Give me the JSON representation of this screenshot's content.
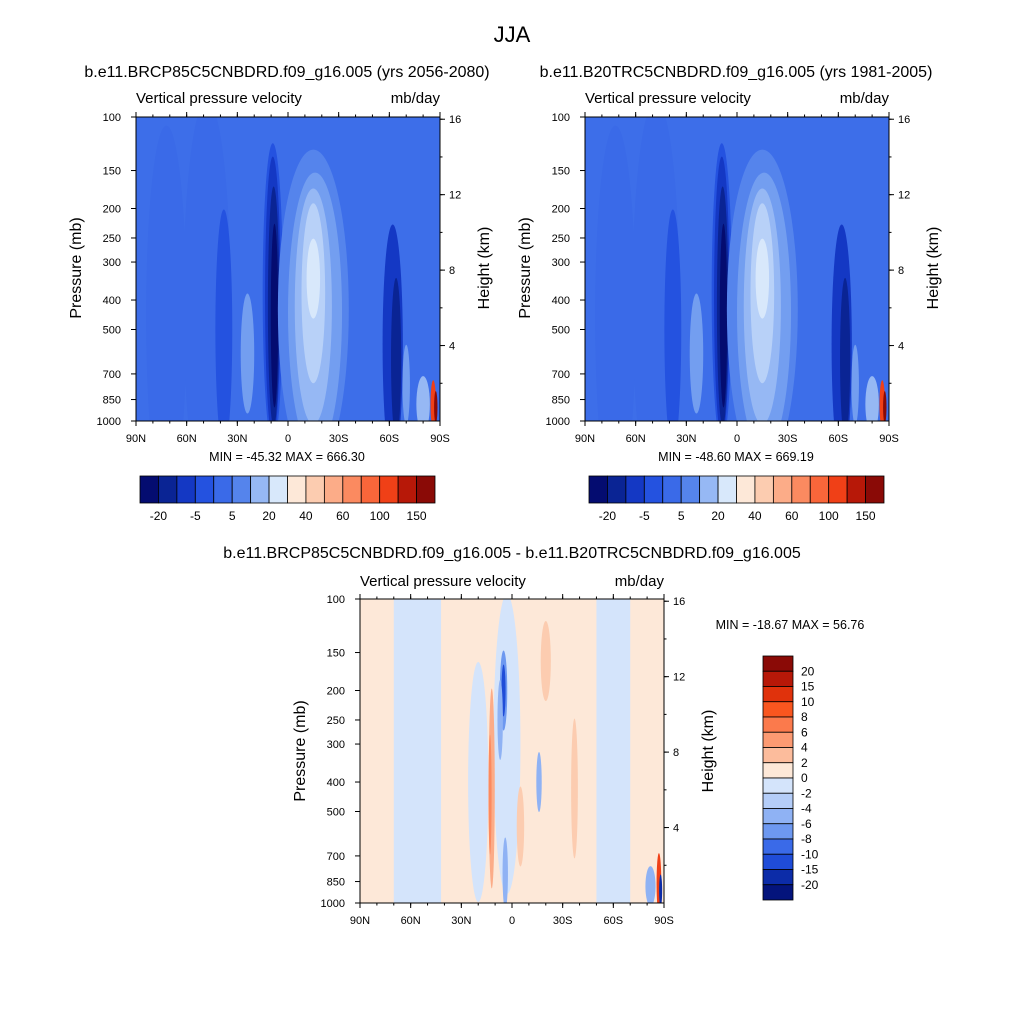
{
  "figure": {
    "title": "JJA"
  },
  "colors": {
    "pos": [
      "#fde8d8",
      "#fcccb0",
      "#fcac88",
      "#fb8a60",
      "#f9663a",
      "#f04017",
      "#d72a0a",
      "#b71808",
      "#8a0a06"
    ],
    "neg": [
      "#d8e8fb",
      "#b8d1f8",
      "#96b8f4",
      "#739ef0",
      "#5584ec",
      "#3a6ae8",
      "#2452e0",
      "#1438c4",
      "#0a2494",
      "#040c70"
    ],
    "diff_pos": [
      "#fde8d8",
      "#fcccb0",
      "#fcac88",
      "#fb8a60",
      "#f9663a",
      "#f04017",
      "#d72a0a",
      "#a8100a"
    ],
    "diff_neg": [
      "#d4e4fb",
      "#b4cdf8",
      "#8fb2f4",
      "#6d98f0",
      "#4e7eec",
      "#3064e6",
      "#1f4cd8",
      "#0c2ca8",
      "#04147c"
    ],
    "ref_bg": "#3d6ee9",
    "diff_bg": "#fde8d8"
  },
  "chart_data": [
    {
      "type": "heatmap",
      "title": "b.e11.BRCP85C5CNBDRD.f09_g16.005 (yrs 2056-2080)",
      "left_string": "Vertical pressure velocity",
      "right_string": "mb/day",
      "xlabel": "",
      "ylabel": "Pressure (mb)",
      "ylabel_right": "Height (km)",
      "x_ticks": [
        "90N",
        "60N",
        "30N",
        "0",
        "30S",
        "60S",
        "90S"
      ],
      "x_values": [
        90,
        60,
        30,
        0,
        -30,
        -60,
        -90
      ],
      "y_ticks": [
        "100",
        "150",
        "200",
        "250",
        "300",
        "400",
        "500",
        "700",
        "850",
        "1000"
      ],
      "y_values": [
        100,
        150,
        200,
        250,
        300,
        400,
        500,
        700,
        850,
        1000
      ],
      "height_ticks": [
        "16",
        "12",
        "8",
        "4"
      ],
      "height_values": [
        16,
        12,
        8,
        4
      ],
      "ylim": [
        1000,
        100
      ],
      "stats": "MIN = -45.32  MAX = 666.30",
      "colorbar_labels": [
        "-20",
        "-5",
        "5",
        "20",
        "40",
        "60",
        "100",
        "150"
      ],
      "colorbar_orientation": "horizontal"
    },
    {
      "type": "heatmap",
      "title": "b.e11.B20TRC5CNBDRD.f09_g16.005 (yrs 1981-2005)",
      "left_string": "Vertical pressure velocity",
      "right_string": "mb/day",
      "xlabel": "",
      "ylabel": "Pressure (mb)",
      "ylabel_right": "Height (km)",
      "x_ticks": [
        "90N",
        "60N",
        "30N",
        "0",
        "30S",
        "60S",
        "90S"
      ],
      "x_values": [
        90,
        60,
        30,
        0,
        -30,
        -60,
        -90
      ],
      "y_ticks": [
        "100",
        "150",
        "200",
        "250",
        "300",
        "400",
        "500",
        "700",
        "850",
        "1000"
      ],
      "y_values": [
        100,
        150,
        200,
        250,
        300,
        400,
        500,
        700,
        850,
        1000
      ],
      "height_ticks": [
        "16",
        "12",
        "8",
        "4"
      ],
      "height_values": [
        16,
        12,
        8,
        4
      ],
      "ylim": [
        1000,
        100
      ],
      "stats": "MIN = -48.60  MAX = 669.19",
      "colorbar_labels": [
        "-20",
        "-5",
        "5",
        "20",
        "40",
        "60",
        "100",
        "150"
      ],
      "colorbar_orientation": "horizontal"
    },
    {
      "type": "heatmap",
      "title": "b.e11.BRCP85C5CNBDRD.f09_g16.005 - b.e11.B20TRC5CNBDRD.f09_g16.005",
      "left_string": "Vertical pressure velocity",
      "right_string": "mb/day",
      "xlabel": "",
      "ylabel": "Pressure (mb)",
      "ylabel_right": "Height (km)",
      "x_ticks": [
        "90N",
        "60N",
        "30N",
        "0",
        "30S",
        "60S",
        "90S"
      ],
      "x_values": [
        90,
        60,
        30,
        0,
        -30,
        -60,
        -90
      ],
      "y_ticks": [
        "100",
        "150",
        "200",
        "250",
        "300",
        "400",
        "500",
        "700",
        "850",
        "1000"
      ],
      "y_values": [
        100,
        150,
        200,
        250,
        300,
        400,
        500,
        700,
        850,
        1000
      ],
      "height_ticks": [
        "16",
        "12",
        "8",
        "4"
      ],
      "height_values": [
        16,
        12,
        8,
        4
      ],
      "ylim": [
        1000,
        100
      ],
      "stats": "MIN = -18.67  MAX =  56.76",
      "colorbar_labels": [
        "20",
        "15",
        "10",
        "8",
        "6",
        "4",
        "2",
        "0",
        "-2",
        "-4",
        "-6",
        "-8",
        "-10",
        "-15",
        "-20"
      ],
      "colorbar_orientation": "vertical"
    }
  ]
}
